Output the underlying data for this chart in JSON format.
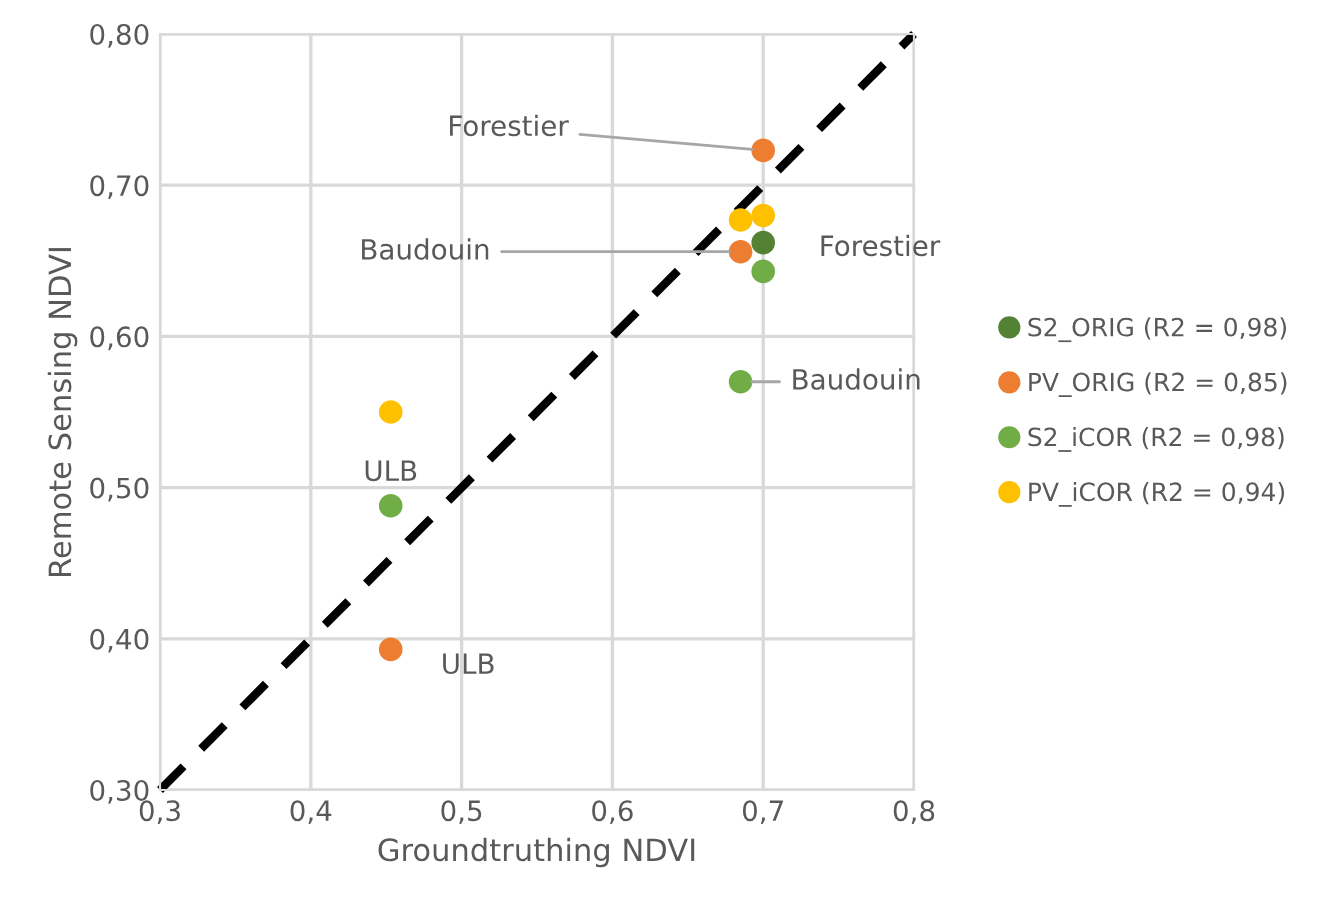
{
  "chart_data": {
    "type": "scatter",
    "xlabel": "Groundtruthing NDVI",
    "ylabel": "Remote Sensing NDVI",
    "x": [
      0.453,
      0.685,
      0.7
    ],
    "series": [
      {
        "name": "S2_ORIG (R2 = 0,98)",
        "color": "#548235",
        "values": [
          null,
          null,
          0.662
        ]
      },
      {
        "name": "PV_ORIG (R2 = 0,85)",
        "color": "#ed7d31",
        "values": [
          0.393,
          0.656,
          0.723
        ]
      },
      {
        "name": "S2_iCOR (R2 = 0,98)",
        "color": "#70ad47",
        "values": [
          0.488,
          0.57,
          0.643
        ]
      },
      {
        "name": "PV_iCOR (R2 = 0,94)",
        "color": "#ffc000",
        "values": [
          0.55,
          0.677,
          0.68
        ]
      },
      {
        "type": "line",
        "color": "#000000",
        "line_style": "dashed",
        "marker": "none",
        "x": [
          0.3,
          0.8
        ],
        "values": [
          0.3,
          0.8
        ]
      }
    ],
    "annotations": [
      {
        "text": "Forestier",
        "x": 0.7,
        "y": 0.723
      },
      {
        "text": "Baudouin",
        "x": 0.685,
        "y": 0.656
      },
      {
        "text": "Forestier",
        "x": 0.7,
        "y": 0.662
      },
      {
        "text": "Baudouin",
        "x": 0.685,
        "y": 0.57
      },
      {
        "text": "ULB",
        "x": 0.453,
        "y": 0.55
      },
      {
        "text": "ULB",
        "x": 0.453,
        "y": 0.393
      }
    ],
    "xlim": [
      0.3,
      0.8
    ],
    "ylim": [
      0.3,
      0.8
    ],
    "xticks": [
      {
        "value": 0.3,
        "label": "0,3"
      },
      {
        "value": 0.4,
        "label": "0,4"
      },
      {
        "value": 0.5,
        "label": "0,5"
      },
      {
        "value": 0.6,
        "label": "0,6"
      },
      {
        "value": 0.7,
        "label": "0,7"
      },
      {
        "value": 0.8,
        "label": "0,8"
      }
    ],
    "yticks": [
      {
        "value": 0.3,
        "label": "0,30"
      },
      {
        "value": 0.4,
        "label": "0,40"
      },
      {
        "value": 0.5,
        "label": "0,50"
      },
      {
        "value": 0.6,
        "label": "0,60"
      },
      {
        "value": 0.7,
        "label": "0,70"
      },
      {
        "value": 0.8,
        "label": "0,80"
      }
    ],
    "grid": true,
    "legend": "right",
    "marker": "circle"
  }
}
